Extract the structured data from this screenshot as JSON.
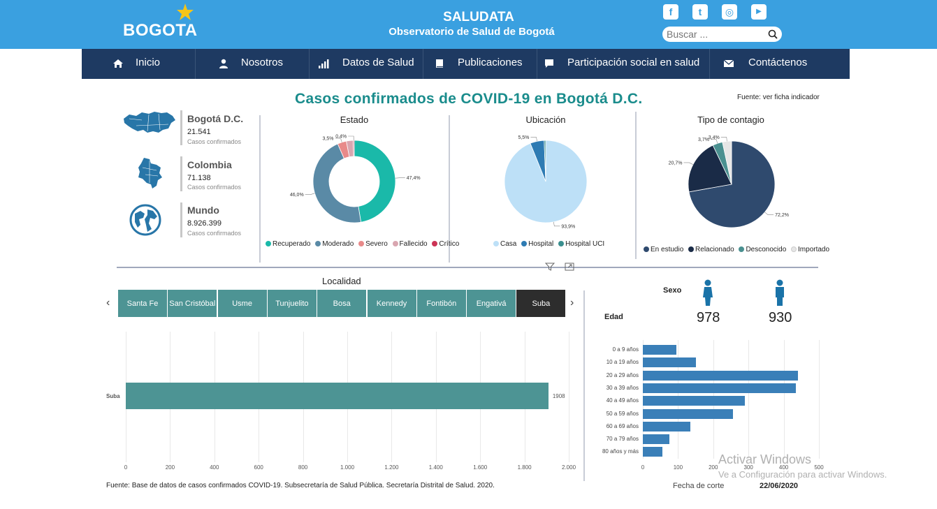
{
  "header": {
    "logo_text": "BOGOTA",
    "title": "SALUDATA",
    "subtitle": "Observatorio de Salud de Bogotá",
    "social": [
      {
        "icon": "facebook-icon",
        "glyph": "f"
      },
      {
        "icon": "twitter-icon",
        "glyph": "t"
      },
      {
        "icon": "instagram-icon",
        "glyph": "◎"
      },
      {
        "icon": "youtube-icon",
        "glyph": "▶"
      }
    ],
    "search_placeholder": "Buscar ..."
  },
  "nav": [
    {
      "label": "Inicio",
      "icon": "home-icon"
    },
    {
      "label": "Nosotros",
      "icon": "user-icon"
    },
    {
      "label": "Datos de Salud",
      "icon": "bar-chart-icon"
    },
    {
      "label": "Publicaciones",
      "icon": "book-icon"
    },
    {
      "label": "Participación social en salud",
      "icon": "chat-icon"
    },
    {
      "label": "Contáctenos",
      "icon": "mail-icon"
    }
  ],
  "report": {
    "title": "Casos confirmados de COVID-19 en Bogotá D.C.",
    "source_note": "Fuente: ver ficha indicador"
  },
  "kpis": [
    {
      "name": "Bogotá D.C.",
      "value": "21.541",
      "caption": "Casos confirmados",
      "icon": "bogota-map-icon"
    },
    {
      "name": "Colombia",
      "value": "71.138",
      "caption": "Casos confirmados",
      "icon": "colombia-map-icon"
    },
    {
      "name": "Mundo",
      "value": "8.926.399",
      "caption": "Casos confirmados",
      "icon": "globe-icon"
    }
  ],
  "estado": {
    "title": "Estado",
    "slices": [
      {
        "name": "Recuperado",
        "pct": 47.4,
        "label": "47,4%",
        "color": "#1ab9a9"
      },
      {
        "name": "Moderado",
        "pct": 46.0,
        "label": "46,0%",
        "color": "#5a8aa6"
      },
      {
        "name": "Severo",
        "pct": 3.5,
        "label": "3,5%",
        "color": "#e88a8a"
      },
      {
        "name": "Fallecido",
        "pct": 2.7,
        "label": "",
        "color": "#d9a6b0"
      },
      {
        "name": "Crítico",
        "pct": 0.4,
        "label": "0,4%",
        "color": "#cc3355"
      }
    ]
  },
  "ubicacion": {
    "title": "Ubicación",
    "slices": [
      {
        "name": "Casa",
        "pct": 93.9,
        "label": "93,9%",
        "color": "#bde0f7"
      },
      {
        "name": "Hospital",
        "pct": 5.5,
        "label": "5,5%",
        "color": "#2e7bb3"
      },
      {
        "name": "Hospital UCI",
        "pct": 0.6,
        "label": "",
        "color": "#3a8f8f"
      }
    ]
  },
  "contagio": {
    "title": "Tipo de contagio",
    "slices": [
      {
        "name": "En estudio",
        "pct": 72.2,
        "label": "72,2%",
        "color": "#2f4a6e"
      },
      {
        "name": "Relacionado",
        "pct": 20.7,
        "label": "20,7%",
        "color": "#1a2b47"
      },
      {
        "name": "Desconocido",
        "pct": 3.7,
        "label": "3,7%",
        "color": "#4a9090"
      },
      {
        "name": "Importado",
        "pct": 3.4,
        "label": "3,4%",
        "color": "#e6e6e6"
      }
    ]
  },
  "localidad": {
    "title": "Localidad",
    "tabs": [
      "Santa Fe",
      "San Cristóbal",
      "Usme",
      "Tunjuelito",
      "Bosa",
      "Kennedy",
      "Fontibón",
      "Engativá",
      "Suba"
    ],
    "selected": "Suba",
    "bar_label": "Suba",
    "bar_value": 1908,
    "bar_value_text": "1908",
    "axis_ticks": [
      "0",
      "200",
      "400",
      "600",
      "800",
      "1.000",
      "1.200",
      "1.400",
      "1.600",
      "1.800",
      "2.000"
    ],
    "axis_max": 2000,
    "bar_color": "#4d9494"
  },
  "sexo": {
    "title": "Sexo",
    "female_value": "978",
    "male_value": "930",
    "female_icon": "female-icon",
    "male_icon": "male-icon"
  },
  "edad": {
    "title": "Edad",
    "groups": [
      "0 a 9 años",
      "10 a 19 años",
      "20 a 29 años",
      "30 a 39 años",
      "40 a 49 años",
      "50 a 59 años",
      "60 a 69 años",
      "70 a 79 años",
      "80 años y más"
    ],
    "values": [
      95,
      150,
      440,
      435,
      290,
      255,
      135,
      75,
      55
    ],
    "axis_ticks": [
      "0",
      "100",
      "200",
      "300",
      "400",
      "500"
    ],
    "axis_max": 500,
    "bar_color": "#3a7fb8"
  },
  "chart_data": [
    {
      "type": "pie",
      "title": "Estado",
      "categories": [
        "Recuperado",
        "Moderado",
        "Severo",
        "Fallecido",
        "Crítico"
      ],
      "values": [
        47.4,
        46.0,
        3.5,
        2.7,
        0.4
      ]
    },
    {
      "type": "pie",
      "title": "Ubicación",
      "categories": [
        "Casa",
        "Hospital",
        "Hospital UCI"
      ],
      "values": [
        93.9,
        5.5,
        0.6
      ]
    },
    {
      "type": "pie",
      "title": "Tipo de contagio",
      "categories": [
        "En estudio",
        "Relacionado",
        "Desconocido",
        "Importado"
      ],
      "values": [
        72.2,
        20.7,
        3.7,
        3.4
      ]
    },
    {
      "type": "bar",
      "title": "Localidad",
      "categories": [
        "Suba"
      ],
      "values": [
        1908
      ],
      "xlim": [
        0,
        2000
      ]
    },
    {
      "type": "bar",
      "title": "Edad",
      "categories": [
        "0 a 9 años",
        "10 a 19 años",
        "20 a 29 años",
        "30 a 39 años",
        "40 a 49 años",
        "50 a 59 años",
        "60 a 69 años",
        "70 a 79 años",
        "80 años y más"
      ],
      "values": [
        95,
        150,
        440,
        435,
        290,
        255,
        135,
        75,
        55
      ],
      "xlim": [
        0,
        500
      ]
    }
  ],
  "footer": {
    "source": "Fuente: Base de datos de casos confirmados COVID-19. Subsecretaría de Salud Pública. Secretaría Distrital de Salud. 2020.",
    "cut_label": "Fecha de corte",
    "cut_date": "22/06/2020"
  },
  "watermark": {
    "line1": "Activar Windows",
    "line2": "Ve a Configuración para activar Windows."
  }
}
